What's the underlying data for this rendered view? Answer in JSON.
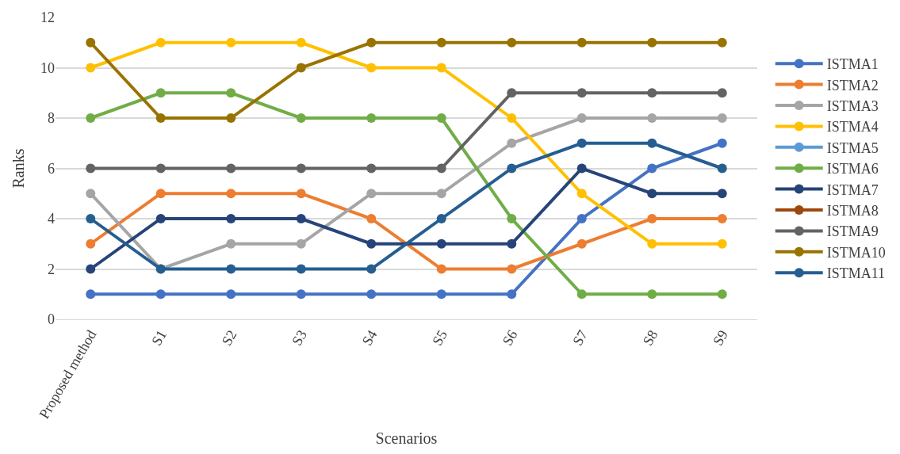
{
  "chart_data": {
    "type": "line",
    "xlabel": "Scenarios",
    "ylabel": "Ranks",
    "categories": [
      "Proposed method",
      "S1",
      "S2",
      "S3",
      "S4",
      "S5",
      "S6",
      "S7",
      "S8",
      "S9"
    ],
    "ylim": [
      0,
      12
    ],
    "yticks": [
      0,
      2,
      4,
      6,
      8,
      10,
      12
    ],
    "grid": "y",
    "legend": "right",
    "marker": "circle",
    "line_style": "solid",
    "series": [
      {
        "name": "ISTMA1",
        "color": "#4472c4",
        "values": [
          1,
          1,
          1,
          1,
          1,
          1,
          1,
          4,
          6,
          7
        ]
      },
      {
        "name": "ISTMA2",
        "color": "#ed7d31",
        "values": [
          3,
          5,
          5,
          5,
          4,
          2,
          2,
          3,
          4,
          4
        ]
      },
      {
        "name": "ISTMA3",
        "color": "#a5a5a5",
        "values": [
          5,
          2,
          3,
          3,
          5,
          5,
          7,
          8,
          8,
          8
        ]
      },
      {
        "name": "ISTMA4",
        "color": "#ffc000",
        "values": [
          10,
          11,
          11,
          11,
          10,
          10,
          8,
          5,
          3,
          3
        ]
      },
      {
        "name": "ISTMA5",
        "color": "#5b9bd5",
        "values": [
          null,
          null,
          null,
          null,
          null,
          null,
          null,
          null,
          null,
          null
        ]
      },
      {
        "name": "ISTMA6",
        "color": "#70ad47",
        "values": [
          8,
          9,
          9,
          8,
          8,
          8,
          4,
          1,
          1,
          1
        ]
      },
      {
        "name": "ISTMA7",
        "color": "#264478",
        "values": [
          2,
          4,
          4,
          4,
          3,
          3,
          3,
          6,
          5,
          5
        ]
      },
      {
        "name": "ISTMA8",
        "color": "#9e480e",
        "values": [
          null,
          null,
          null,
          null,
          null,
          null,
          null,
          null,
          null,
          null
        ]
      },
      {
        "name": "ISTMA9",
        "color": "#636363",
        "values": [
          6,
          6,
          6,
          6,
          6,
          6,
          9,
          9,
          9,
          9
        ]
      },
      {
        "name": "ISTMA10",
        "color": "#997300",
        "values": [
          11,
          8,
          8,
          10,
          11,
          11,
          11,
          11,
          11,
          11
        ]
      },
      {
        "name": "ISTMA11",
        "color": "#255e91",
        "values": [
          4,
          2,
          2,
          2,
          2,
          4,
          6,
          7,
          7,
          6
        ]
      }
    ]
  }
}
